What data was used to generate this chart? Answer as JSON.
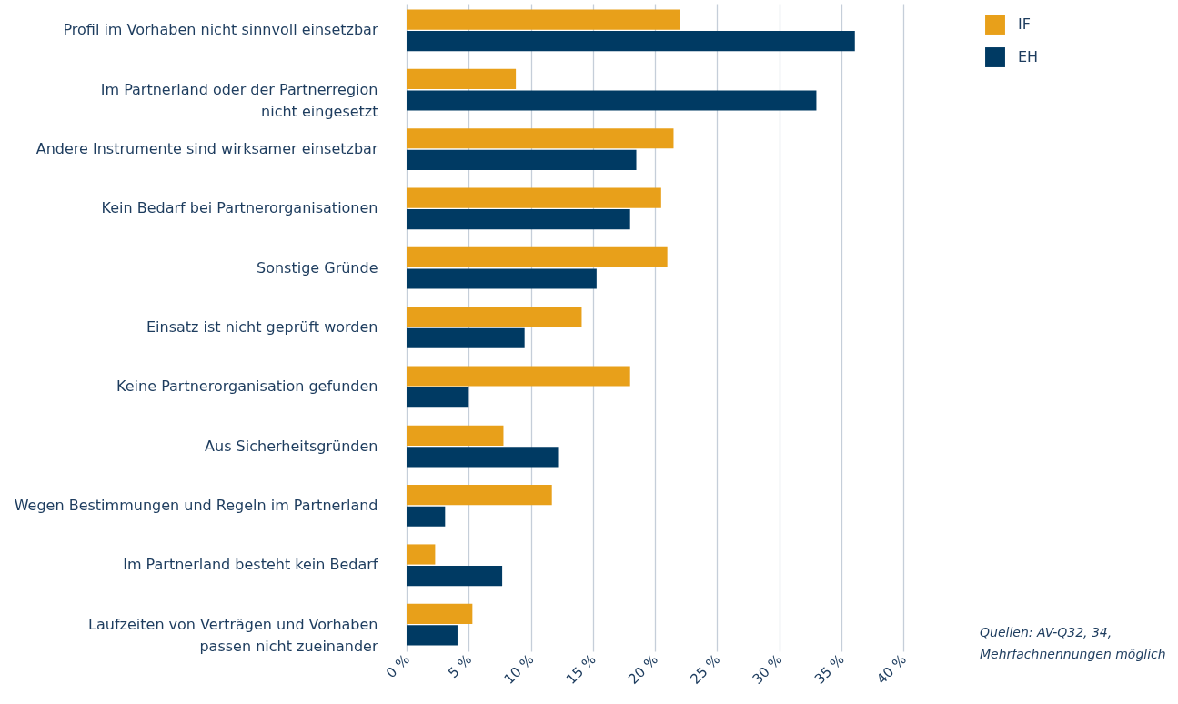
{
  "chart_data": {
    "type": "bar",
    "orientation": "horizontal",
    "categories": [
      "Profil im Vorhaben nicht sinnvoll einsetzbar",
      "Im Partnerland oder der Partnerregion nicht eingesetzt",
      "Andere Instrumente sind wirksamer einsetzbar",
      "Kein Bedarf bei  Partnerorganisationen",
      "Sonstige Gründe",
      "Einsatz ist nicht geprüft worden",
      "Keine Partnerorganisation gefunden",
      "Aus Sicherheitsgründen",
      "Wegen Bestimmungen und Regeln im Partnerland",
      "Im Partnerland besteht kein Bedarf",
      "Laufzeiten von Verträgen und Vorhaben passen nicht zueinander"
    ],
    "series": [
      {
        "name": "IF",
        "color": "#e8a01a",
        "values": [
          22,
          8.8,
          21.5,
          20.5,
          21,
          14.1,
          18,
          7.8,
          11.7,
          2.3,
          5.3
        ]
      },
      {
        "name": "EH",
        "color": "#003a63",
        "values": [
          36.1,
          33,
          18.5,
          18,
          15.3,
          9.5,
          5,
          12.2,
          3.1,
          7.7,
          4.1
        ]
      }
    ],
    "xlim": [
      0,
      40
    ],
    "xticks": [
      {
        "value": 0,
        "label": "0 %"
      },
      {
        "value": 5,
        "label": "5 %"
      },
      {
        "value": 10,
        "label": "10 %"
      },
      {
        "value": 15,
        "label": "15 %"
      },
      {
        "value": 20,
        "label": "20 %"
      },
      {
        "value": 25,
        "label": "25 %"
      },
      {
        "value": 30,
        "label": "30 %"
      },
      {
        "value": 35,
        "label": "35 %"
      },
      {
        "value": 40,
        "label": "40 %"
      }
    ],
    "grid": "x",
    "legend": "top right",
    "annotations": [
      "Quellen: AV-Q32, 34, Mehrfachnennungen möglich"
    ]
  }
}
